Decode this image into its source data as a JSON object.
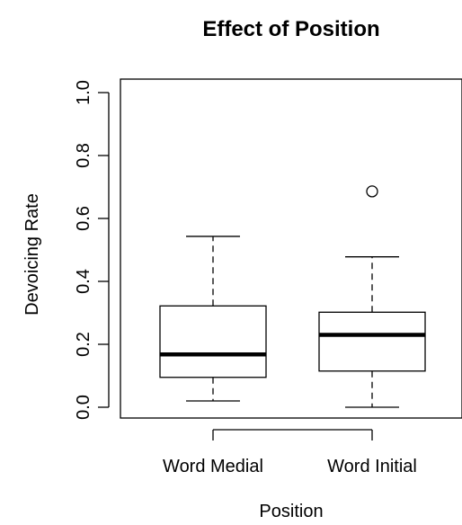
{
  "chart_data": {
    "type": "boxplot",
    "title": "Effect of Position",
    "xlabel": "Position",
    "ylabel": "Devoicing Rate",
    "ylim": [
      0.0,
      1.0
    ],
    "y_ticks": [
      "0.0",
      "0.2",
      "0.4",
      "0.6",
      "0.8",
      "1.0"
    ],
    "categories": [
      "Word Medial",
      "Word Initial"
    ],
    "boxes": [
      {
        "category": "Word Medial",
        "whisker_low": 0.02,
        "q1": 0.095,
        "median": 0.168,
        "q3": 0.322,
        "whisker_high": 0.543,
        "outliers": []
      },
      {
        "category": "Word Initial",
        "whisker_low": 0.0,
        "q1": 0.115,
        "median": 0.23,
        "q3": 0.302,
        "whisker_high": 0.478,
        "outliers": [
          0.686
        ]
      }
    ],
    "grid": false,
    "legend": "none"
  }
}
